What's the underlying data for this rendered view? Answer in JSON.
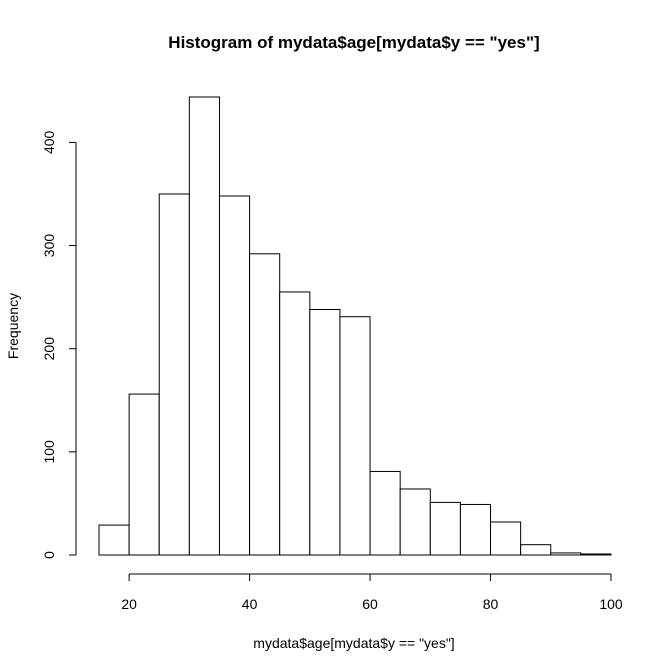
{
  "chart_data": {
    "type": "bar",
    "title": "Histogram of mydata$age[mydata$y == \"yes\"]",
    "xlabel": "mydata$age[mydata$y == \"yes\"]",
    "ylabel": "Frequency",
    "bin_edges": [
      15,
      20,
      25,
      30,
      35,
      40,
      45,
      50,
      55,
      60,
      65,
      70,
      75,
      80,
      85,
      90,
      95,
      100
    ],
    "values": [
      29,
      156,
      350,
      444,
      348,
      292,
      255,
      238,
      231,
      81,
      64,
      51,
      49,
      32,
      10,
      2,
      1
    ],
    "x_ticks": [
      20,
      40,
      60,
      80,
      100
    ],
    "y_ticks": [
      0,
      100,
      200,
      300,
      400
    ],
    "xlim": [
      15,
      100
    ],
    "ylim": [
      0,
      444
    ],
    "grid": false,
    "legend": "none"
  }
}
